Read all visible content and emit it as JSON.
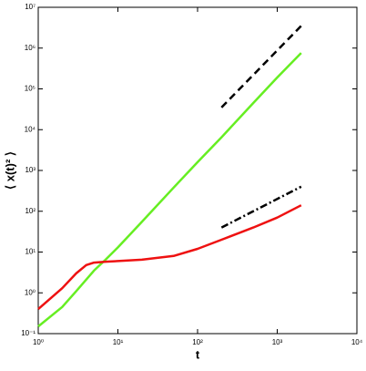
{
  "chart_data": {
    "type": "line",
    "x_label": "t",
    "y_label": "⟨ x(t)² ⟩",
    "xscale": "log",
    "yscale": "log",
    "xlim": [
      1,
      10000
    ],
    "ylim": [
      0.1,
      10000000
    ],
    "xticks": [
      {
        "value": 1,
        "label": "10⁰"
      },
      {
        "value": 10,
        "label": "10¹"
      },
      {
        "value": 100,
        "label": "10²"
      },
      {
        "value": 1000,
        "label": "10³"
      },
      {
        "value": 10000,
        "label": "10⁴"
      }
    ],
    "yticks": [
      {
        "value": 0.1,
        "label": "10⁻¹"
      },
      {
        "value": 1,
        "label": "10⁰"
      },
      {
        "value": 10,
        "label": "10¹"
      },
      {
        "value": 100,
        "label": "10²"
      },
      {
        "value": 1000,
        "label": "10³"
      },
      {
        "value": 10000,
        "label": "10⁴"
      },
      {
        "value": 100000,
        "label": "10⁵"
      },
      {
        "value": 1000000,
        "label": "10⁶"
      },
      {
        "value": 10000000,
        "label": "10⁷"
      }
    ],
    "series": [
      {
        "color": "#66ee22",
        "dash": "solid",
        "x": [
          1,
          2,
          3,
          5,
          7,
          10,
          20,
          50,
          100,
          200,
          500,
          1000,
          2000
        ],
        "values": [
          0.15,
          0.45,
          1.1,
          3.5,
          6.5,
          13,
          55,
          380,
          1600,
          6500,
          45000,
          190000,
          760000
        ]
      },
      {
        "color": "#ee1111",
        "dash": "solid",
        "x": [
          1,
          2,
          3,
          4,
          5,
          7,
          10,
          20,
          50,
          100,
          200,
          500,
          1000,
          2000
        ],
        "values": [
          0.4,
          1.3,
          3,
          4.8,
          5.5,
          5.8,
          6,
          6.5,
          8,
          12,
          20,
          40,
          70,
          140
        ]
      },
      {
        "color": "#000000",
        "dash": "dashed",
        "x": [
          200,
          2000
        ],
        "values": [
          35000,
          3500000
        ]
      },
      {
        "color": "#000000",
        "dash": "dashdot",
        "x": [
          200,
          2000
        ],
        "values": [
          40,
          400
        ]
      }
    ]
  }
}
